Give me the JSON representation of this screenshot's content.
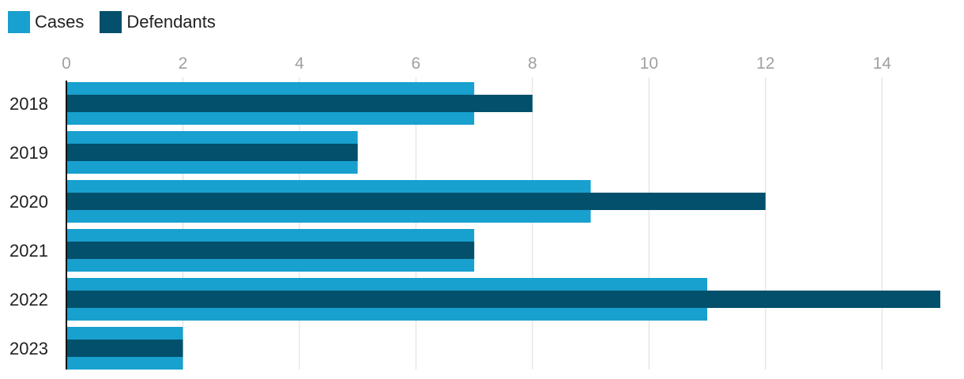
{
  "chart_data": {
    "type": "bar",
    "orientation": "horizontal",
    "categories": [
      "2018",
      "2019",
      "2020",
      "2021",
      "2022",
      "2023"
    ],
    "series": [
      {
        "name": "Cases",
        "color": "#18a0cf",
        "values": [
          7,
          5,
          9,
          7,
          11,
          2
        ]
      },
      {
        "name": "Defendants",
        "color": "#02506b",
        "values": [
          8,
          5,
          12,
          7,
          15,
          2
        ]
      }
    ],
    "xlim": [
      0,
      15
    ],
    "xticks": [
      "0",
      "2",
      "4",
      "6",
      "8",
      "10",
      "12",
      "14"
    ],
    "title": "",
    "xlabel": "",
    "ylabel": "",
    "grid": true,
    "legend": "top-left"
  }
}
